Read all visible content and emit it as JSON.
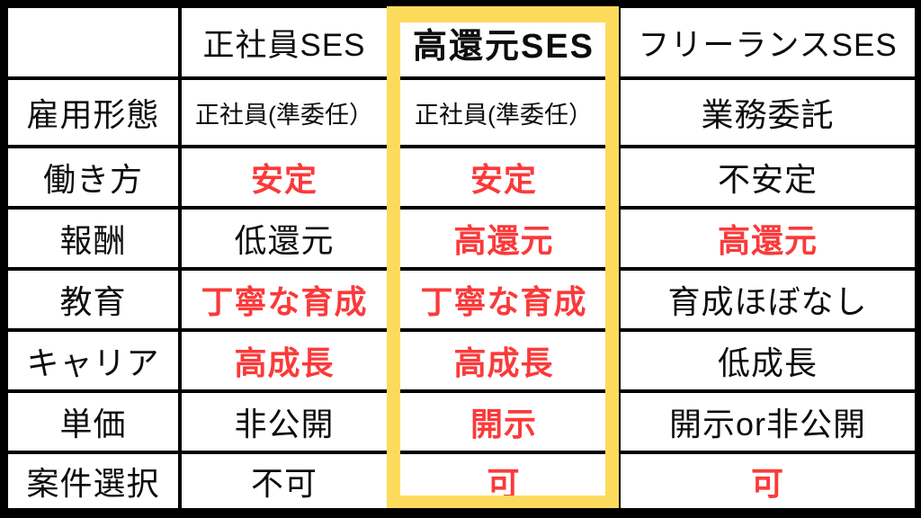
{
  "colors": {
    "emphasis_red": "#fa3a3a",
    "highlight_yellow": "#fcdb5c",
    "grid_black": "#000000",
    "cell_background": "#ffffff"
  },
  "table": {
    "columns": [
      {
        "label": ""
      },
      {
        "label": "正社員SES",
        "highlighted": false
      },
      {
        "label": "高還元SES",
        "highlighted": true
      },
      {
        "label": "フリーランスSES",
        "highlighted": false
      }
    ],
    "rows": [
      {
        "label": "雇用形態",
        "cells": [
          {
            "text": "正社員(準委任）",
            "emphasis": false
          },
          {
            "text": "正社員(準委任）",
            "emphasis": false
          },
          {
            "text": "業務委託",
            "emphasis": false
          }
        ]
      },
      {
        "label": "働き方",
        "cells": [
          {
            "text": "安定",
            "emphasis": true
          },
          {
            "text": "安定",
            "emphasis": true
          },
          {
            "text": "不安定",
            "emphasis": false
          }
        ]
      },
      {
        "label": "報酬",
        "cells": [
          {
            "text": "低還元",
            "emphasis": false
          },
          {
            "text": "高還元",
            "emphasis": true
          },
          {
            "text": "高還元",
            "emphasis": true
          }
        ]
      },
      {
        "label": "教育",
        "cells": [
          {
            "text": "丁寧な育成",
            "emphasis": true
          },
          {
            "text": "丁寧な育成",
            "emphasis": true
          },
          {
            "text": "育成ほぼなし",
            "emphasis": false
          }
        ]
      },
      {
        "label": "キャリア",
        "cells": [
          {
            "text": "高成長",
            "emphasis": true
          },
          {
            "text": "高成長",
            "emphasis": true
          },
          {
            "text": "低成長",
            "emphasis": false
          }
        ]
      },
      {
        "label": "単価",
        "cells": [
          {
            "text": "非公開",
            "emphasis": false
          },
          {
            "text": "開示",
            "emphasis": true
          },
          {
            "text": "開示or非公開",
            "emphasis": false
          }
        ]
      },
      {
        "label": "案件選択",
        "cells": [
          {
            "text": "不可",
            "emphasis": false
          },
          {
            "text": "可",
            "emphasis": true
          },
          {
            "text": "可",
            "emphasis": true
          }
        ]
      }
    ]
  }
}
